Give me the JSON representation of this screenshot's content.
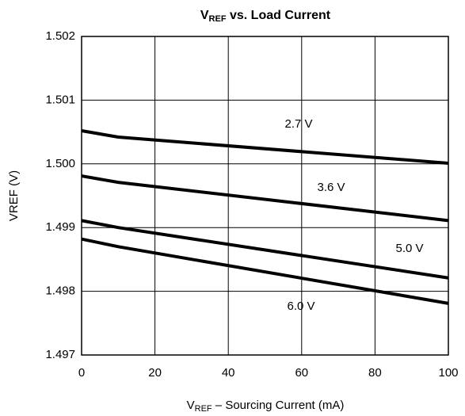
{
  "chart_data": {
    "type": "line",
    "title": [
      "V",
      "REF",
      " vs. Load Current"
    ],
    "x_label": [
      "V",
      "REF",
      " – Sourcing Current (mA)"
    ],
    "y_label": "VREF (V)",
    "x": [
      0,
      10,
      100
    ],
    "series": [
      {
        "name": "2.7 V",
        "color": "#000000",
        "values": [
          1.50052,
          1.50042,
          1.50001
        ]
      },
      {
        "name": "3.6 V",
        "color": "#000000",
        "values": [
          1.49981,
          1.49971,
          1.49911
        ]
      },
      {
        "name": "5.0 V",
        "color": "#000000",
        "values": [
          1.49911,
          1.499,
          1.49821
        ]
      },
      {
        "name": "6.0 V",
        "color": "#000000",
        "values": [
          1.49882,
          1.4987,
          1.49781
        ]
      }
    ],
    "xlim": [
      0,
      100
    ],
    "xticks": [
      0,
      20,
      40,
      60,
      80,
      100
    ],
    "ylim": [
      1.497,
      1.502
    ],
    "yticks": [
      1.497,
      1.498,
      1.499,
      {
        "value": 1.5,
        "label": "1.500"
      },
      1.501,
      1.502
    ],
    "grid": true
  }
}
